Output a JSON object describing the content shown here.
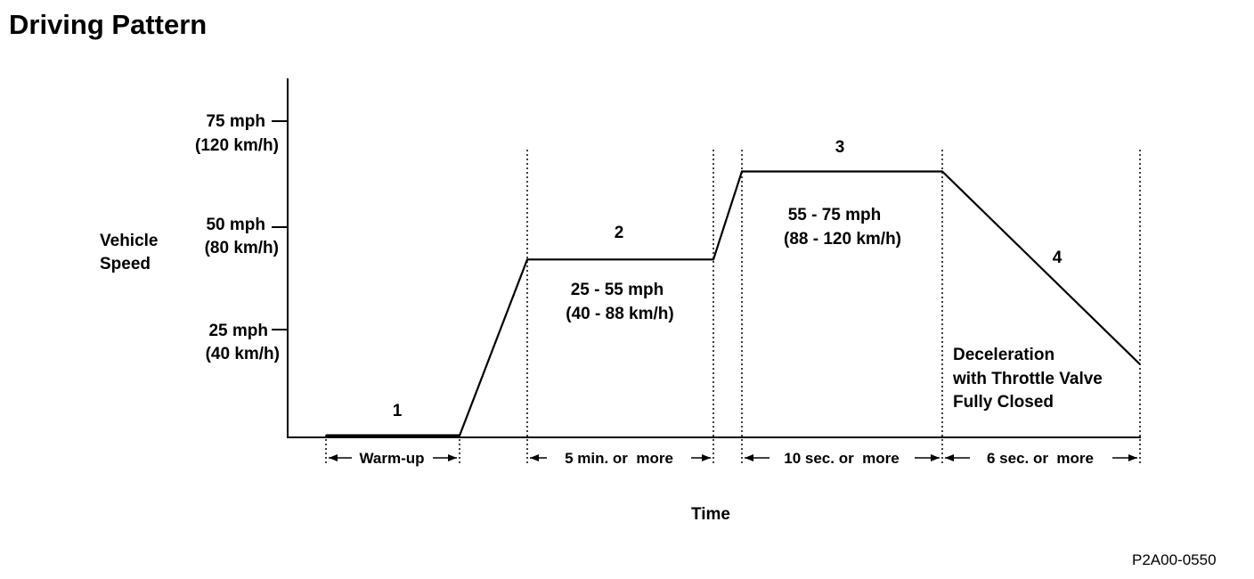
{
  "title": "Driving Pattern",
  "figure_code": "P2A00-0550",
  "axes": {
    "y_label_lines": [
      "Vehicle",
      "Speed"
    ],
    "x_label": "Time",
    "y_ticks": [
      {
        "value_mph": 75,
        "line1": "75 mph",
        "line2": "(120 km/h)"
      },
      {
        "value_mph": 50,
        "line1": "50 mph",
        "line2": "(80 km/h)"
      },
      {
        "value_mph": 25,
        "line1": "25 mph",
        "line2": "(40 km/h)"
      }
    ]
  },
  "phases": [
    {
      "number": "1",
      "duration": "Warm-up",
      "speed_lines": []
    },
    {
      "number": "2",
      "duration": "5 min. or  more",
      "speed_lines": [
        "25 - 55 mph",
        "(40 - 88 km/h)"
      ]
    },
    {
      "number": "3",
      "duration": "10 sec. or  more",
      "speed_lines": [
        "55 - 75 mph",
        "(88 - 120 km/h)"
      ]
    },
    {
      "number": "4",
      "duration": "6 sec. or  more",
      "speed_lines": [
        "Deceleration",
        "with Throttle Valve",
        "Fully Closed"
      ]
    }
  ],
  "speed_profile_mph": [
    0,
    0,
    42,
    42,
    63,
    63,
    17
  ]
}
